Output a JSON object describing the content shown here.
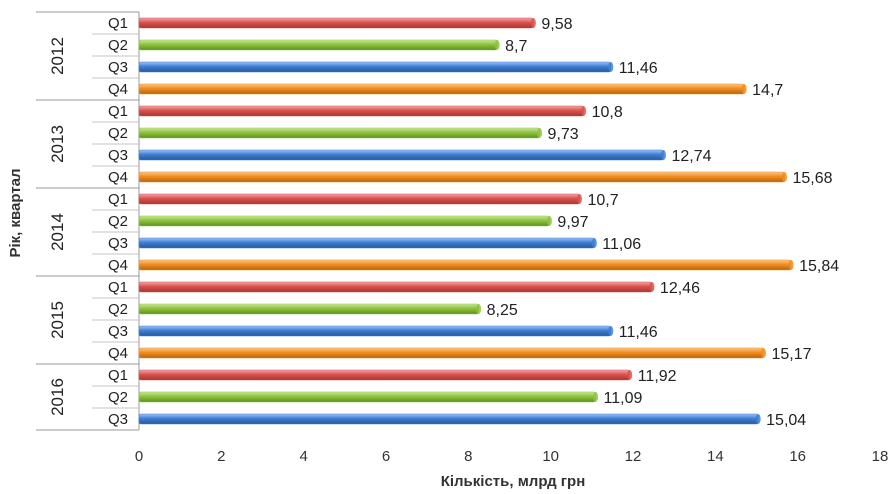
{
  "chart_data": {
    "type": "bar",
    "orientation": "horizontal",
    "xlabel": "Кількість, млрд грн",
    "ylabel": "Рік, квартал",
    "xlim": [
      0,
      18
    ],
    "x_ticks": [
      0,
      2,
      4,
      6,
      8,
      10,
      12,
      14,
      16,
      18
    ],
    "grid": false,
    "groups": [
      {
        "year": "2012",
        "bars": [
          {
            "quarter": "Q1",
            "value": 9.58,
            "label": "9,58"
          },
          {
            "quarter": "Q2",
            "value": 8.7,
            "label": "8,7"
          },
          {
            "quarter": "Q3",
            "value": 11.46,
            "label": "11,46"
          },
          {
            "quarter": "Q4",
            "value": 14.7,
            "label": "14,7"
          }
        ]
      },
      {
        "year": "2013",
        "bars": [
          {
            "quarter": "Q1",
            "value": 10.8,
            "label": "10,8"
          },
          {
            "quarter": "Q2",
            "value": 9.73,
            "label": "9,73"
          },
          {
            "quarter": "Q3",
            "value": 12.74,
            "label": "12,74"
          },
          {
            "quarter": "Q4",
            "value": 15.68,
            "label": "15,68"
          }
        ]
      },
      {
        "year": "2014",
        "bars": [
          {
            "quarter": "Q1",
            "value": 10.7,
            "label": "10,7"
          },
          {
            "quarter": "Q2",
            "value": 9.97,
            "label": "9,97"
          },
          {
            "quarter": "Q3",
            "value": 11.06,
            "label": "11,06"
          },
          {
            "quarter": "Q4",
            "value": 15.84,
            "label": "15,84"
          }
        ]
      },
      {
        "year": "2015",
        "bars": [
          {
            "quarter": "Q1",
            "value": 12.46,
            "label": "12,46"
          },
          {
            "quarter": "Q2",
            "value": 8.25,
            "label": "8,25"
          },
          {
            "quarter": "Q3",
            "value": 11.46,
            "label": "11,46"
          },
          {
            "quarter": "Q4",
            "value": 15.17,
            "label": "15,17"
          }
        ]
      },
      {
        "year": "2016",
        "bars": [
          {
            "quarter": "Q1",
            "value": 11.92,
            "label": "11,92"
          },
          {
            "quarter": "Q2",
            "value": 11.09,
            "label": "11,09"
          },
          {
            "quarter": "Q3",
            "value": 15.04,
            "label": "15,04"
          }
        ]
      }
    ],
    "quarter_colors": {
      "Q1": "#d9534f",
      "Q2": "#8dc23f",
      "Q3": "#3f7fd4",
      "Q4": "#f28c1e"
    }
  }
}
